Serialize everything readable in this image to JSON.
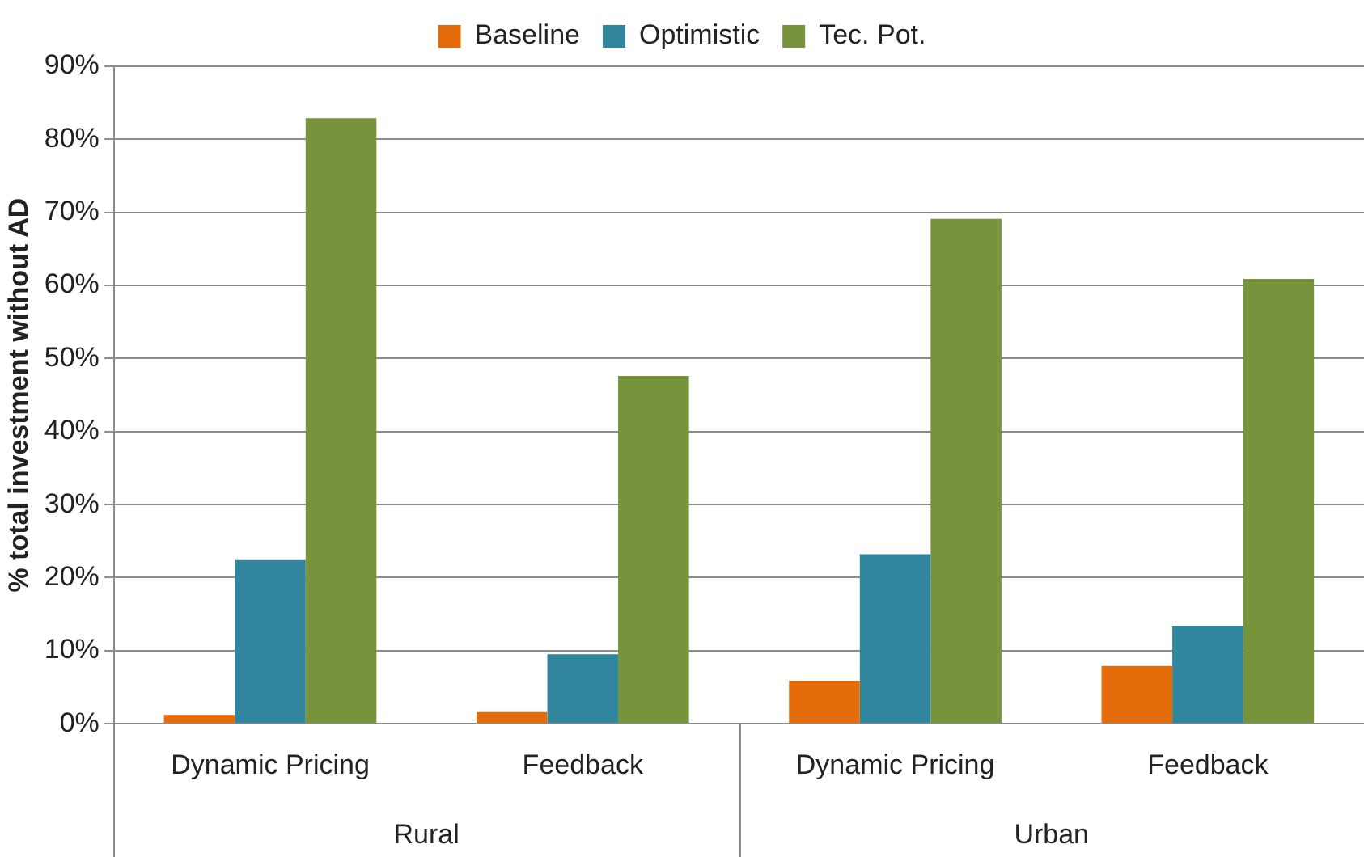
{
  "chart_data": {
    "type": "bar",
    "ylabel": "% total investment without AD",
    "categories": [
      "Dynamic Pricing",
      "Feedback",
      "Dynamic Pricing",
      "Feedback"
    ],
    "series": [
      {
        "name": "Baseline",
        "color": "#e46c0a",
        "values": [
          1.2,
          1.6,
          5.9,
          7.9
        ]
      },
      {
        "name": "Optimistic",
        "color": "#31859c",
        "values": [
          22.4,
          9.5,
          23.2,
          13.4
        ]
      },
      {
        "name": "Tec. Pot.",
        "color": "#77933c",
        "values": [
          82.9,
          47.6,
          69.1,
          60.9
        ]
      }
    ],
    "ylim": [
      0,
      90
    ],
    "yticks": [
      {
        "value": 0,
        "label": "0%"
      },
      {
        "value": 10,
        "label": "10%"
      },
      {
        "value": 20,
        "label": "20%"
      },
      {
        "value": 30,
        "label": "30%"
      },
      {
        "value": 40,
        "label": "40%"
      },
      {
        "value": 50,
        "label": "50%"
      },
      {
        "value": 60,
        "label": "60%"
      },
      {
        "value": 70,
        "label": "70%"
      },
      {
        "value": 80,
        "label": "80%"
      },
      {
        "value": 90,
        "label": "90%"
      }
    ],
    "annotations": [
      "Rural",
      "Urban"
    ],
    "grid": "y",
    "legend": "top"
  }
}
